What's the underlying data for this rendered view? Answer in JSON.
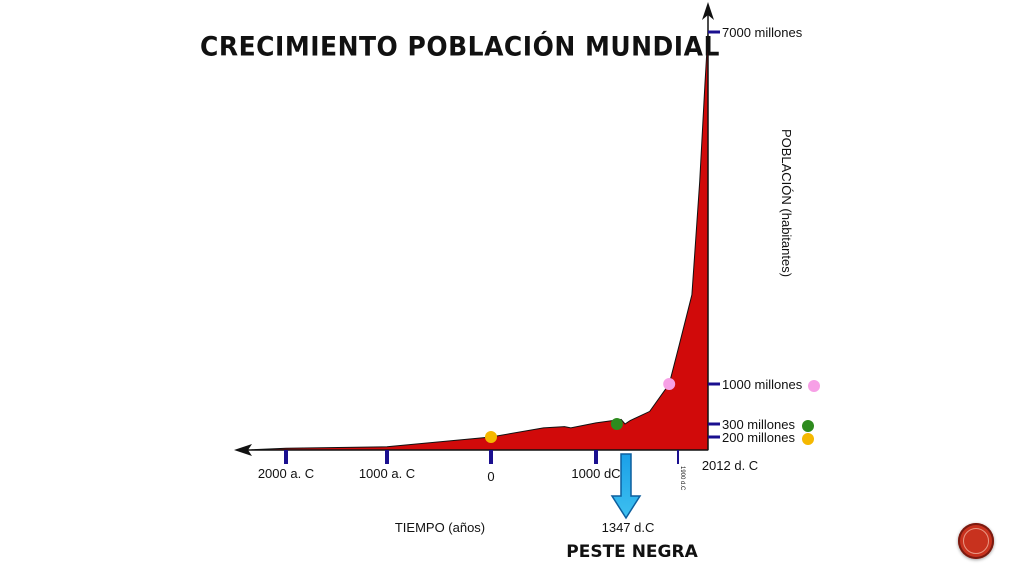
{
  "slide": {
    "title": "CRECIMIENTO POBLACIÓN MUNDIAL"
  },
  "chart_data": {
    "type": "area",
    "title": "CRECIMIENTO POBLACIÓN MUNDIAL",
    "xlabel": "TIEMPO (años)",
    "ylabel": "POBLACIÓN (habitantes)",
    "colors": {
      "area": "#d10a0a",
      "axis": "#111111",
      "tick": "#1a0f8f",
      "arrow": "#29a6e0"
    },
    "x_ticks": [
      {
        "label": "2000 a. C"
      },
      {
        "label": "1000 a. C"
      },
      {
        "label": "0"
      },
      {
        "label": "1000 dC"
      },
      {
        "label": "1900 d.C"
      },
      {
        "label": "2012 d. C"
      }
    ],
    "y_ticks": [
      {
        "label": "200 millones"
      },
      {
        "label": "300 millones"
      },
      {
        "label": "1000 millones"
      },
      {
        "label": "7000 millones"
      }
    ],
    "series": [
      {
        "x": [
          -2200,
          -2000,
          -1000,
          0,
          500,
          700,
          760,
          1000,
          1300,
          1347,
          1400,
          1600,
          1800,
          1900,
          1950,
          1980,
          2000,
          2012
        ],
        "y": [
          5,
          27,
          50,
          200,
          270,
          280,
          270,
          320,
          380,
          300,
          360,
          520,
          1000,
          1650,
          2520,
          4450,
          6100,
          7000
        ]
      }
    ],
    "markers": [
      {
        "x": 0,
        "population": 200,
        "color": "#f5b800",
        "legend": "200 millones"
      },
      {
        "x": 1250,
        "population": 300,
        "color": "#2e8b1e",
        "legend": "300 millones"
      },
      {
        "x": 1800,
        "population": 1000,
        "color": "#f7a0e6",
        "legend": "1000 millones"
      }
    ],
    "annotation": {
      "year_label": "1347 d.C",
      "event_label": "PESTE NEGRA"
    }
  }
}
